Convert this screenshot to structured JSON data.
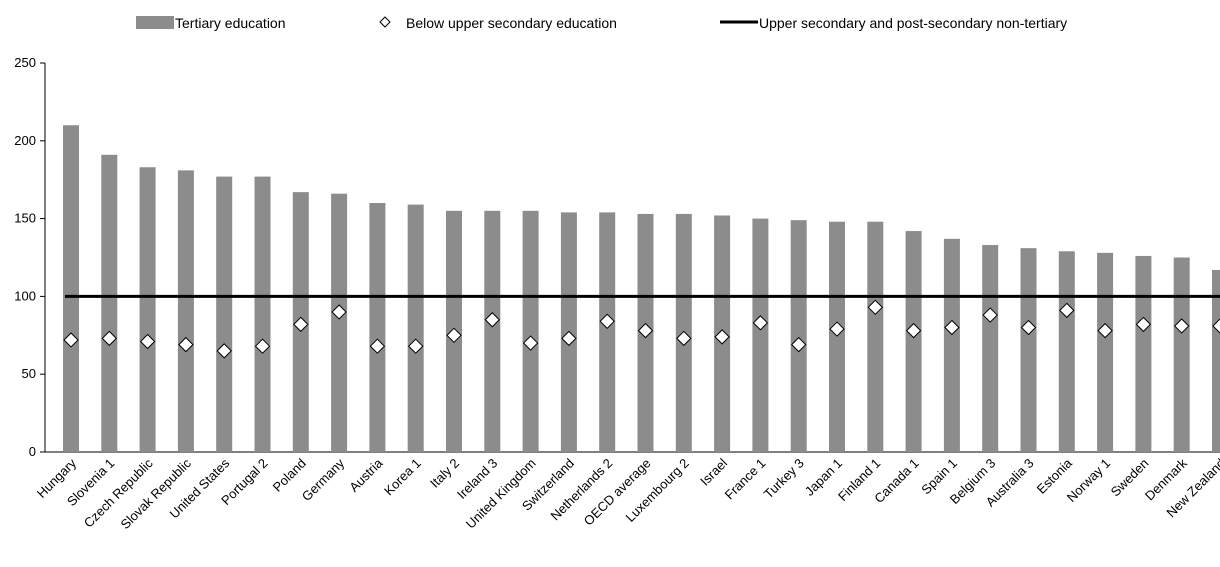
{
  "chart_data": {
    "type": "bar",
    "categories": [
      "Hungary",
      "Slovenia 1",
      "Czech Republic",
      "Slovak Republic",
      "United States",
      "Portugal 2",
      "Poland",
      "Germany",
      "Austria",
      "Korea 1",
      "Italy 2",
      "Ireland 3",
      "United Kingdom",
      "Switzerland",
      "Netherlands 2",
      "OECD average",
      "Luxembourg 2",
      "Israel",
      "France 1",
      "Turkey 3",
      "Japan 1",
      "Finland 1",
      "Canada 1",
      "Spain 1",
      "Belgium 3",
      "Australia 3",
      "Estonia",
      "Norway 1",
      "Sweden",
      "Denmark",
      "New Zealand"
    ],
    "series": [
      {
        "name": "Tertiary education",
        "kind": "bar",
        "color": "#8c8c8c",
        "values": [
          210,
          191,
          183,
          181,
          177,
          177,
          167,
          166,
          160,
          159,
          155,
          155,
          155,
          154,
          154,
          153,
          153,
          152,
          150,
          149,
          148,
          148,
          142,
          137,
          133,
          131,
          129,
          128,
          126,
          125,
          117
        ]
      },
      {
        "name": "Below upper secondary education",
        "kind": "marker",
        "marker": "diamond",
        "color": "#ffffff",
        "values": [
          72,
          73,
          71,
          69,
          65,
          68,
          82,
          90,
          68,
          68,
          75,
          85,
          70,
          73,
          84,
          78,
          73,
          74,
          83,
          69,
          79,
          93,
          78,
          80,
          88,
          80,
          91,
          78,
          82,
          81,
          81
        ]
      },
      {
        "name": "Upper secondary and post-secondary non-tertiary",
        "kind": "line",
        "color": "#000000",
        "values": [
          100,
          100,
          100,
          100,
          100,
          100,
          100,
          100,
          100,
          100,
          100,
          100,
          100,
          100,
          100,
          100,
          100,
          100,
          100,
          100,
          100,
          100,
          100,
          100,
          100,
          100,
          100,
          100,
          100,
          100,
          100
        ]
      }
    ],
    "yticks": [
      "0",
      "50",
      "100",
      "150",
      "200",
      "250"
    ],
    "ylim": [
      0,
      250
    ],
    "legend_position": "top",
    "grid": false
  }
}
